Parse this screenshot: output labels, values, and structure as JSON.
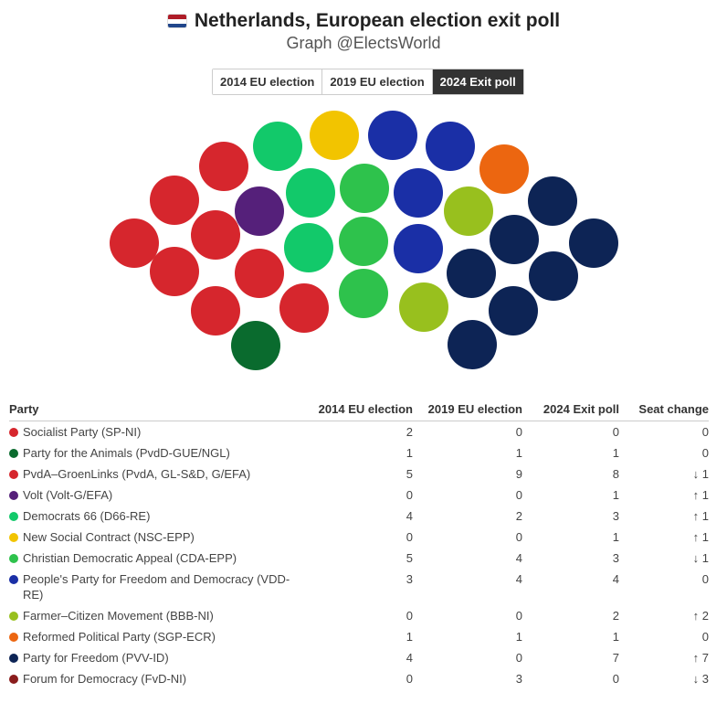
{
  "header": {
    "title": "Netherlands, European election exit poll",
    "subtitle": "Graph @ElectsWorld",
    "flag_colors": [
      "#ae1c28",
      "#ffffff",
      "#21468b"
    ]
  },
  "tabs": [
    {
      "label": "2014 EU election",
      "active": false
    },
    {
      "label": "2019 EU election",
      "active": false
    },
    {
      "label": "2024 Exit poll",
      "active": true
    }
  ],
  "table": {
    "headers": {
      "party": "Party",
      "c2014": "2014 EU election",
      "c2019": "2019 EU election",
      "c2024": "2024 Exit poll",
      "change": "Seat change"
    },
    "rows": [
      {
        "name": "Socialist Party (SP-NI)",
        "color": "#d6262d",
        "v2014": "2",
        "v2019": "0",
        "v2024": "0",
        "change": "0",
        "dir": "zero"
      },
      {
        "name": "Party for the Animals (PvdD-GUE/NGL)",
        "color": "#0a6b2e",
        "v2014": "1",
        "v2019": "1",
        "v2024": "1",
        "change": "0",
        "dir": "zero"
      },
      {
        "name": "PvdA–GroenLinks (PvdA, GL-S&D, G/EFA)",
        "color": "#d6262d",
        "v2014": "5",
        "v2019": "9",
        "v2024": "8",
        "change": "↓ 1",
        "dir": "down"
      },
      {
        "name": "Volt (Volt-G/EFA)",
        "color": "#55207a",
        "v2014": "0",
        "v2019": "0",
        "v2024": "1",
        "change": "↑ 1",
        "dir": "up"
      },
      {
        "name": "Democrats 66 (D66-RE)",
        "color": "#12c96a",
        "v2014": "4",
        "v2019": "2",
        "v2024": "3",
        "change": "↑ 1",
        "dir": "up"
      },
      {
        "name": "New Social Contract (NSC-EPP)",
        "color": "#f2c400",
        "v2014": "0",
        "v2019": "0",
        "v2024": "1",
        "change": "↑ 1",
        "dir": "up"
      },
      {
        "name": "Christian Democratic Appeal (CDA-EPP)",
        "color": "#2ec24c",
        "v2014": "5",
        "v2019": "4",
        "v2024": "3",
        "change": "↓ 1",
        "dir": "down"
      },
      {
        "name": "People's Party for Freedom and Democracy (VDD-RE)",
        "color": "#1a2fa6",
        "v2014": "3",
        "v2019": "4",
        "v2024": "4",
        "change": "0",
        "dir": "zero"
      },
      {
        "name": "Farmer–Citizen Movement (BBB-NI)",
        "color": "#98c01e",
        "v2014": "0",
        "v2019": "0",
        "v2024": "2",
        "change": "↑ 2",
        "dir": "up"
      },
      {
        "name": "Reformed Political Party (SGP-ECR)",
        "color": "#ec6610",
        "v2014": "1",
        "v2019": "1",
        "v2024": "1",
        "change": "0",
        "dir": "zero"
      },
      {
        "name": "Party for Freedom (PVV-ID)",
        "color": "#0d2455",
        "v2014": "4",
        "v2019": "0",
        "v2024": "7",
        "change": "↑ 7",
        "dir": "up"
      },
      {
        "name": "Forum for Democracy (FvD-NI)",
        "color": "#8a1c1c",
        "v2014": "0",
        "v2019": "3",
        "v2024": "0",
        "change": "↓ 3",
        "dir": "down"
      }
    ]
  },
  "chart_data": {
    "type": "parliament",
    "series": [
      {
        "name": "Party for the Animals (PvdD-GUE/NGL)",
        "seats": 1,
        "color": "#0a6b2e"
      },
      {
        "name": "PvdA–GroenLinks (PvdA, GL-S&D, G/EFA)",
        "seats": 8,
        "color": "#d6262d"
      },
      {
        "name": "Volt (Volt-G/EFA)",
        "seats": 1,
        "color": "#55207a"
      },
      {
        "name": "Democrats 66 (D66-RE)",
        "seats": 3,
        "color": "#12c96a"
      },
      {
        "name": "New Social Contract (NSC-EPP)",
        "seats": 1,
        "color": "#f2c400"
      },
      {
        "name": "Christian Democratic Appeal (CDA-EPP)",
        "seats": 3,
        "color": "#2ec24c"
      },
      {
        "name": "People's Party for Freedom and Democracy (VDD-RE)",
        "seats": 4,
        "color": "#1a2fa6"
      },
      {
        "name": "Farmer–Citizen Movement (BBB-NI)",
        "seats": 2,
        "color": "#98c01e"
      },
      {
        "name": "Reformed Political Party (SGP-ECR)",
        "seats": 1,
        "color": "#ec6610"
      },
      {
        "name": "Party for Freedom (PVV-ID)",
        "seats": 7,
        "color": "#0d2455"
      }
    ],
    "total_seats": 31
  }
}
